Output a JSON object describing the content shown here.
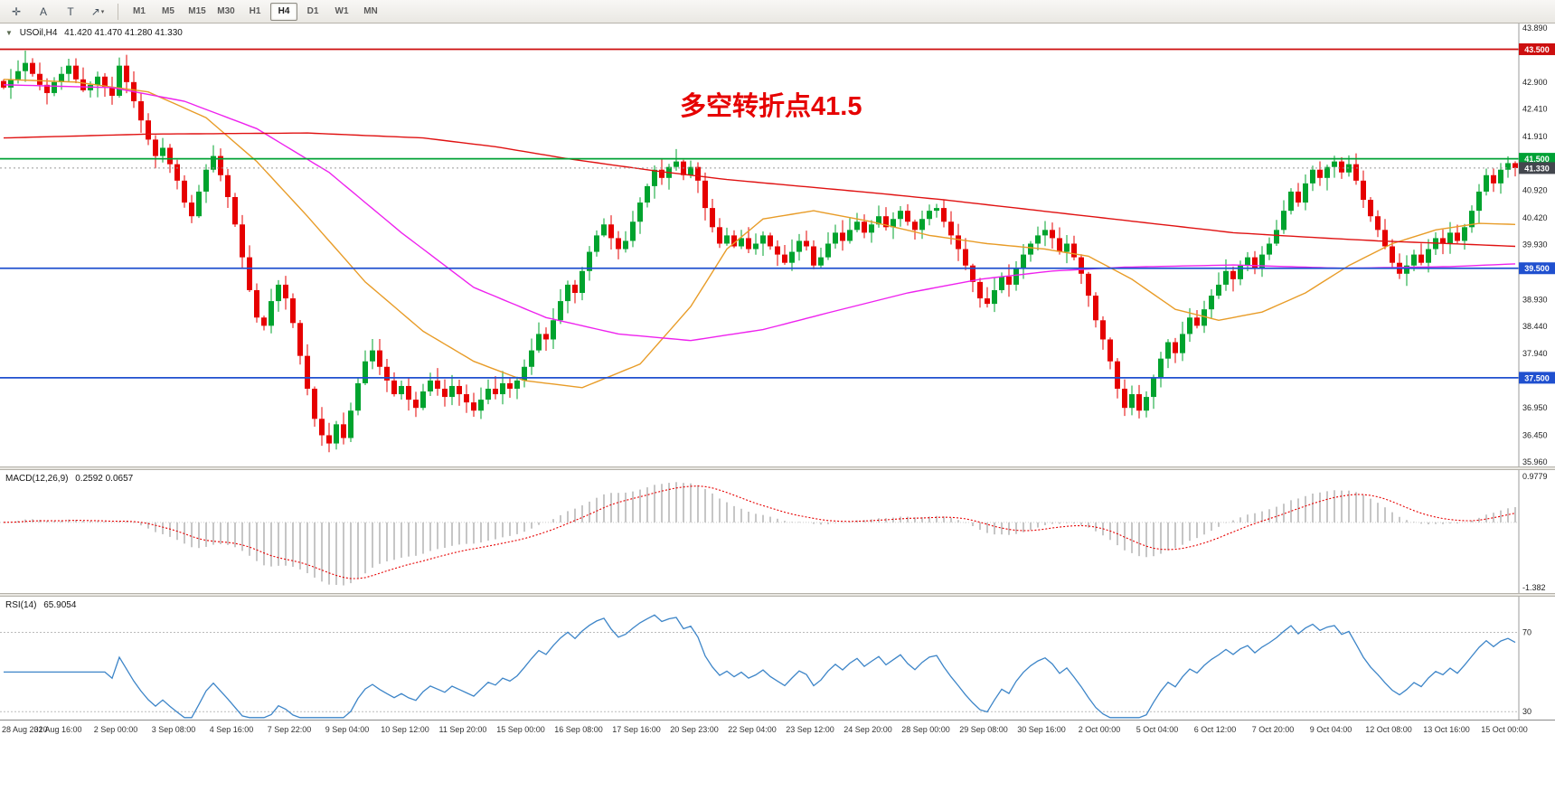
{
  "toolbar": {
    "tools": [
      {
        "id": "crosshair",
        "glyph": "✛"
      },
      {
        "id": "text-tool",
        "glyph": "A"
      },
      {
        "id": "label-tool",
        "glyph": "T"
      },
      {
        "id": "arrow-tool",
        "glyph": "↗",
        "has_dropdown": true
      }
    ],
    "timeframes": [
      "M1",
      "M5",
      "M15",
      "M30",
      "H1",
      "H4",
      "D1",
      "W1",
      "MN"
    ],
    "active_timeframe": "H4"
  },
  "legend": {
    "dropdown_glyph": "▼",
    "symbol": "USOil,H4",
    "ohlc": "41.420 41.470 41.280 41.330"
  },
  "annotation": {
    "text": "多空转折点41.5"
  },
  "chart_data": {
    "type": "candlestick",
    "symbol": "USOil",
    "timeframe": "H4",
    "ohlc_display": {
      "open": "41.420",
      "high": "41.470",
      "low": "41.280",
      "close": "41.330"
    },
    "price_domain": [
      35.88,
      43.97
    ],
    "price_axis_labels": [
      "43.890",
      "42.900",
      "42.410",
      "41.910",
      "40.920",
      "40.420",
      "39.930",
      "38.930",
      "38.440",
      "37.940",
      "36.950",
      "36.450",
      "35.960"
    ],
    "price_markers": [
      {
        "label": "43.500",
        "value": 43.5,
        "color": "#cc0e0e",
        "type": "resistance-line"
      },
      {
        "label": "41.500",
        "value": 41.5,
        "color": "#00a135",
        "type": "pivot-line"
      },
      {
        "label": "41.330",
        "value": 41.33,
        "color": "#43474e",
        "type": "current-price"
      },
      {
        "label": "39.500",
        "value": 39.5,
        "color": "#2050cf",
        "type": "support-line"
      },
      {
        "label": "37.500",
        "value": 37.5,
        "color": "#2050cf",
        "type": "support-line"
      }
    ],
    "hlines": [
      {
        "value": 43.5,
        "color": "#cc0e0e"
      },
      {
        "value": 41.5,
        "color": "#00a135"
      },
      {
        "value": 39.5,
        "color": "#2050cf"
      },
      {
        "value": 37.5,
        "color": "#2050cf"
      }
    ],
    "current_price": 41.33,
    "candles": {
      "closes": [
        42.8,
        42.95,
        43.1,
        43.25,
        43.05,
        42.85,
        42.7,
        42.9,
        43.05,
        43.2,
        42.95,
        42.75,
        42.85,
        43.0,
        42.8,
        42.65,
        43.2,
        42.9,
        42.55,
        42.2,
        41.85,
        41.55,
        41.7,
        41.4,
        41.1,
        40.7,
        40.45,
        40.9,
        41.3,
        41.55,
        41.2,
        40.8,
        40.3,
        39.7,
        39.1,
        38.6,
        38.45,
        38.9,
        39.2,
        38.95,
        38.5,
        37.9,
        37.3,
        36.75,
        36.45,
        36.3,
        36.65,
        36.4,
        36.9,
        37.4,
        37.8,
        38.0,
        37.7,
        37.45,
        37.2,
        37.35,
        37.1,
        36.95,
        37.25,
        37.45,
        37.3,
        37.15,
        37.35,
        37.2,
        37.05,
        36.9,
        37.1,
        37.3,
        37.2,
        37.4,
        37.3,
        37.45,
        37.7,
        38.0,
        38.3,
        38.2,
        38.55,
        38.9,
        39.2,
        39.05,
        39.45,
        39.8,
        40.1,
        40.3,
        40.05,
        39.85,
        40.0,
        40.35,
        40.7,
        41.0,
        41.3,
        41.15,
        41.35,
        41.45,
        41.2,
        41.35,
        41.1,
        40.6,
        40.25,
        39.95,
        40.1,
        39.9,
        40.05,
        39.85,
        39.95,
        40.1,
        39.9,
        39.75,
        39.6,
        39.8,
        40.0,
        39.9,
        39.55,
        39.7,
        39.95,
        40.15,
        40.0,
        40.2,
        40.35,
        40.15,
        40.3,
        40.45,
        40.25,
        40.4,
        40.55,
        40.35,
        40.2,
        40.4,
        40.55,
        40.6,
        40.35,
        40.1,
        39.85,
        39.55,
        39.25,
        38.95,
        38.85,
        39.1,
        39.35,
        39.2,
        39.5,
        39.75,
        39.95,
        40.1,
        40.2,
        40.05,
        39.8,
        39.95,
        39.7,
        39.4,
        39.0,
        38.55,
        38.2,
        37.8,
        37.3,
        36.95,
        37.2,
        36.9,
        37.15,
        37.5,
        37.85,
        38.15,
        37.95,
        38.3,
        38.6,
        38.45,
        38.75,
        39.0,
        39.2,
        39.45,
        39.3,
        39.55,
        39.7,
        39.5,
        39.75,
        39.95,
        40.2,
        40.55,
        40.9,
        40.7,
        41.05,
        41.3,
        41.15,
        41.35,
        41.45,
        41.25,
        41.4,
        41.1,
        40.75,
        40.45,
        40.2,
        39.9,
        39.6,
        39.4,
        39.55,
        39.75,
        39.6,
        39.85,
        40.05,
        39.95,
        40.15,
        40.0,
        40.25,
        40.55,
        40.9,
        41.2,
        41.05,
        41.3,
        41.42,
        41.33
      ]
    },
    "moving_averages": [
      {
        "name": "ma-fast-orange",
        "color": "#e89c28",
        "points": [
          [
            0,
            42.95
          ],
          [
            10,
            42.9
          ],
          [
            20,
            42.72
          ],
          [
            28,
            42.25
          ],
          [
            35,
            41.45
          ],
          [
            42,
            40.45
          ],
          [
            50,
            39.25
          ],
          [
            58,
            38.35
          ],
          [
            65,
            37.8
          ],
          [
            72,
            37.45
          ],
          [
            80,
            37.32
          ],
          [
            88,
            37.75
          ],
          [
            95,
            38.8
          ],
          [
            100,
            39.85
          ],
          [
            105,
            40.4
          ],
          [
            112,
            40.55
          ],
          [
            120,
            40.35
          ],
          [
            128,
            40.1
          ],
          [
            136,
            39.95
          ],
          [
            144,
            39.85
          ],
          [
            150,
            39.72
          ],
          [
            156,
            39.3
          ],
          [
            162,
            38.75
          ],
          [
            168,
            38.55
          ],
          [
            174,
            38.7
          ],
          [
            180,
            39.05
          ],
          [
            186,
            39.55
          ],
          [
            192,
            39.95
          ],
          [
            198,
            40.2
          ],
          [
            204,
            40.32
          ],
          [
            209,
            40.3
          ]
        ]
      },
      {
        "name": "ma-mid-magenta",
        "color": "#ee22ee",
        "points": [
          [
            0,
            42.85
          ],
          [
            15,
            42.8
          ],
          [
            25,
            42.55
          ],
          [
            35,
            42.05
          ],
          [
            45,
            41.25
          ],
          [
            55,
            40.15
          ],
          [
            65,
            39.15
          ],
          [
            75,
            38.6
          ],
          [
            85,
            38.3
          ],
          [
            95,
            38.18
          ],
          [
            105,
            38.38
          ],
          [
            115,
            38.72
          ],
          [
            125,
            39.05
          ],
          [
            135,
            39.3
          ],
          [
            145,
            39.45
          ],
          [
            155,
            39.52
          ],
          [
            170,
            39.56
          ],
          [
            185,
            39.5
          ],
          [
            200,
            39.53
          ],
          [
            209,
            39.58
          ]
        ]
      },
      {
        "name": "ma-slow-red",
        "color": "#e01212",
        "points": [
          [
            0,
            41.88
          ],
          [
            20,
            41.95
          ],
          [
            42,
            41.97
          ],
          [
            58,
            41.88
          ],
          [
            68,
            41.72
          ],
          [
            78,
            41.5
          ],
          [
            90,
            41.28
          ],
          [
            100,
            41.12
          ],
          [
            110,
            41.0
          ],
          [
            120,
            40.88
          ],
          [
            130,
            40.75
          ],
          [
            140,
            40.6
          ],
          [
            150,
            40.45
          ],
          [
            160,
            40.3
          ],
          [
            170,
            40.15
          ],
          [
            180,
            40.07
          ],
          [
            190,
            40.0
          ],
          [
            200,
            39.95
          ],
          [
            209,
            39.9
          ]
        ]
      }
    ],
    "time_labels": [
      "28 Aug 2020",
      "31 Aug 16:00",
      "2 Sep 00:00",
      "3 Sep 08:00",
      "4 Sep 16:00",
      "7 Sep 22:00",
      "9 Sep 04:00",
      "10 Sep 12:00",
      "11 Sep 20:00",
      "15 Sep 00:00",
      "16 Sep 08:00",
      "17 Sep 16:00",
      "20 Sep 23:00",
      "22 Sep 04:00",
      "23 Sep 12:00",
      "24 Sep 20:00",
      "28 Sep 00:00",
      "29 Sep 08:00",
      "30 Sep 16:00",
      "2 Oct 00:00",
      "5 Oct 04:00",
      "6 Oct 12:00",
      "7 Oct 20:00",
      "9 Oct 04:00",
      "12 Oct 08:00",
      "13 Oct 16:00",
      "15 Oct 00:00"
    ],
    "macd": {
      "label": "MACD(12,26,9)",
      "values_text": "0.2592 0.0657",
      "fast": 12,
      "slow": 26,
      "signal_period": 9,
      "axis_labels": [
        "0.9779",
        "-1.382"
      ],
      "range": [
        -1.5,
        1.11
      ]
    },
    "rsi": {
      "label": "RSI(14)",
      "value_text": "65.9054",
      "period": 14,
      "levels": [
        70,
        30
      ],
      "range": [
        26,
        88
      ]
    }
  },
  "colors": {
    "up": "#00a32e",
    "down": "#e60000",
    "macd_hist": "#b8b8b8",
    "macd_signal": "#e60000",
    "rsi_line": "#3d85c8",
    "annotation": "#e60000",
    "axis_text": "#1c1c1c"
  }
}
